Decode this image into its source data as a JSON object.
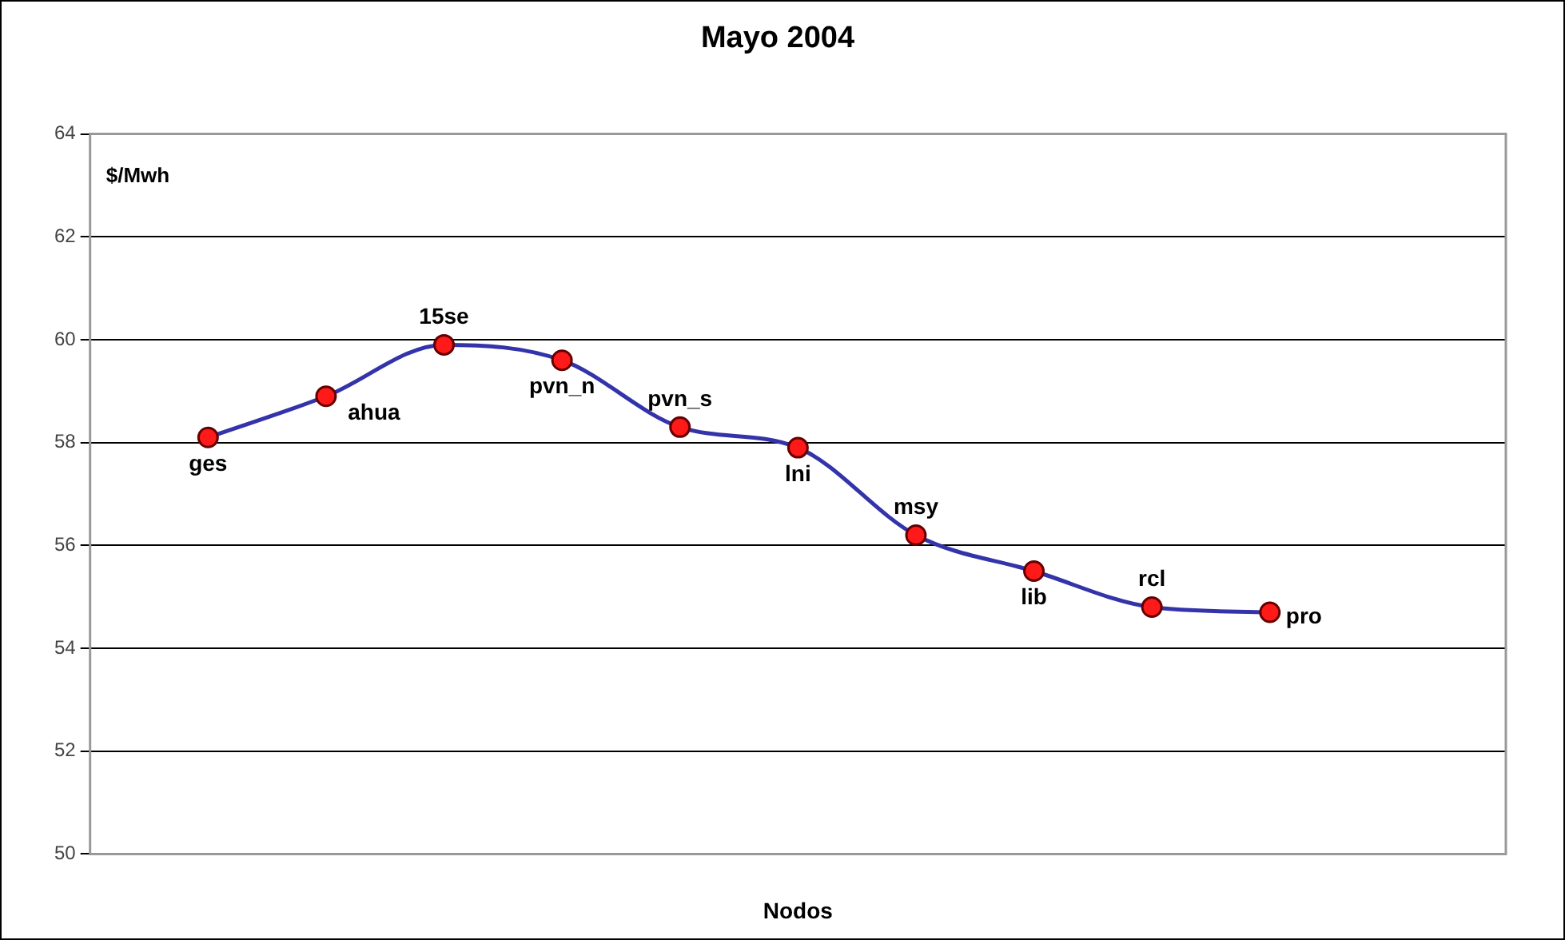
{
  "chart_data": {
    "type": "line",
    "title": "Mayo 2004",
    "xlabel": "Nodos",
    "ylabel": "$/Mwh",
    "categories": [
      null,
      "ges",
      "ahua",
      "15se",
      "pvn_n",
      "pvn_s",
      "lni",
      "msy",
      "lib",
      "rcl",
      "pro",
      null,
      null
    ],
    "series": [
      {
        "color": "#3333aa",
        "values": [
          null,
          58.1,
          58.9,
          59.9,
          59.6,
          58.3,
          57.9,
          56.2,
          55.5,
          54.8,
          54.7,
          null,
          null
        ]
      }
    ],
    "ylim": [
      50,
      64
    ],
    "yticks": [
      50,
      52,
      54,
      56,
      58,
      60,
      62,
      64
    ],
    "grid": "y",
    "legend": false,
    "tick_labels": "y",
    "marker": "circle",
    "line_style": "solid"
  }
}
